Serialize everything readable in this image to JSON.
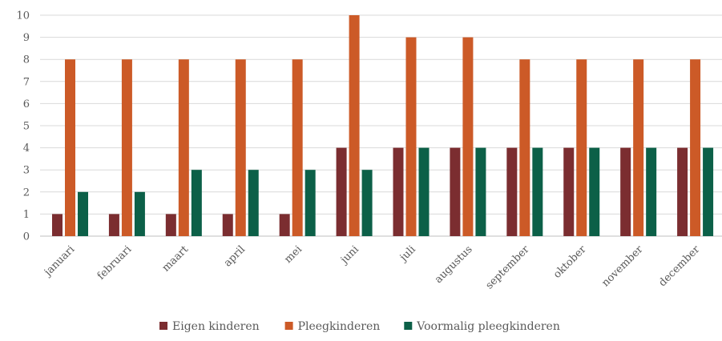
{
  "chart_data": {
    "type": "bar",
    "categories": [
      "januari",
      "februari",
      "maart",
      "april",
      "mei",
      "juni",
      "juli",
      "augustus",
      "september",
      "oktober",
      "november",
      "december"
    ],
    "series": [
      {
        "name": "Eigen kinderen",
        "color": "#7b2d30",
        "values": [
          1,
          1,
          1,
          1,
          1,
          4,
          4,
          4,
          4,
          4,
          4,
          4
        ]
      },
      {
        "name": "Pleegkinderen",
        "color": "#cc5a27",
        "values": [
          8,
          8,
          8,
          8,
          8,
          10,
          9,
          9,
          8,
          8,
          8,
          8
        ]
      },
      {
        "name": "Voormalig pleegkinderen",
        "color": "#0c6048",
        "values": [
          2,
          2,
          3,
          3,
          3,
          3,
          4,
          4,
          4,
          4,
          4,
          4
        ]
      }
    ],
    "ylim": [
      0,
      10
    ],
    "yticks": [
      "0",
      "1",
      "2",
      "3",
      "4",
      "5",
      "6",
      "7",
      "8",
      "9",
      "10"
    ],
    "grid": true,
    "legend_position": "bottom"
  }
}
